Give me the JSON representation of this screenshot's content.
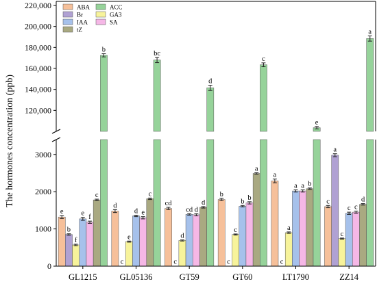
{
  "chart_data": {
    "type": "bar",
    "ylabel": "The hormones concentration (ppb)",
    "categories": [
      "GL1215",
      "GL05136",
      "GT59",
      "GT60",
      "LT1790",
      "ZZ14"
    ],
    "y_axis": {
      "broken": true,
      "lower_range": [
        0,
        3400
      ],
      "upper_range": [
        100000,
        220000
      ],
      "lower_ticks": [
        0,
        1000,
        2000,
        3000
      ],
      "upper_ticks": [
        120000,
        140000,
        160000,
        180000,
        200000,
        220000
      ],
      "lower_tick_labels": [
        "0",
        "1000",
        "2000",
        "3000"
      ],
      "upper_tick_labels": [
        "120,000",
        "140,000",
        "160,000",
        "180,000",
        "200,000",
        "220,000"
      ]
    },
    "legend_position": "top-left",
    "series": [
      {
        "name": "ABA",
        "color": "#f6c09a",
        "values": [
          1320,
          1480,
          1550,
          1790,
          2290,
          1600
        ],
        "errors": [
          40,
          40,
          30,
          30,
          50,
          30
        ],
        "labels": [
          "e",
          "d",
          "cd",
          "b",
          "a",
          "c"
        ]
      },
      {
        "name": "Br",
        "color": "#b0a1d3",
        "values": [
          850,
          5,
          5,
          5,
          5,
          2980
        ],
        "errors": [
          20,
          0,
          0,
          0,
          0,
          40
        ],
        "labels": [
          "b",
          "c",
          "c",
          "c",
          "c",
          "a"
        ]
      },
      {
        "name": "IAA",
        "color": "#a6c1eb",
        "values": [
          1270,
          1350,
          1390,
          1610,
          2020,
          1420
        ],
        "errors": [
          40,
          20,
          20,
          20,
          30,
          30
        ],
        "labels": [
          "e",
          "d",
          "cd",
          "b",
          "a",
          "c"
        ]
      },
      {
        "name": "ACC",
        "color": "#96d39a",
        "values": [
          172500,
          168000,
          141500,
          163500,
          103500,
          188500
        ],
        "errors": [
          1500,
          2500,
          2500,
          1800,
          1200,
          2500
        ],
        "labels": [
          "b",
          "bc",
          "d",
          "c",
          "e",
          "a"
        ]
      },
      {
        "name": "GA3",
        "color": "#f7f39b",
        "values": [
          570,
          660,
          690,
          850,
          900,
          740
        ],
        "errors": [
          20,
          15,
          15,
          15,
          20,
          15
        ],
        "labels": [
          "f",
          "e",
          "d",
          "c",
          "a",
          "c"
        ]
      },
      {
        "name": "SA",
        "color": "#f5b7e6",
        "values": [
          1180,
          1300,
          1380,
          1700,
          2020,
          1450
        ],
        "errors": [
          30,
          30,
          30,
          30,
          30,
          30
        ],
        "labels": [
          "f",
          "e",
          "d",
          "b",
          "a",
          "c"
        ]
      },
      {
        "name": "tZ",
        "color": "#a9a981",
        "values": [
          1780,
          1810,
          1580,
          2490,
          2080,
          1660
        ],
        "errors": [
          20,
          20,
          20,
          20,
          20,
          20
        ],
        "labels": [
          "c",
          "c",
          "d",
          "a",
          "b",
          "d"
        ]
      }
    ],
    "bar_order": [
      "ABA",
      "Br",
      "GA3",
      "IAA",
      "SA",
      "tZ",
      "ACC"
    ]
  }
}
